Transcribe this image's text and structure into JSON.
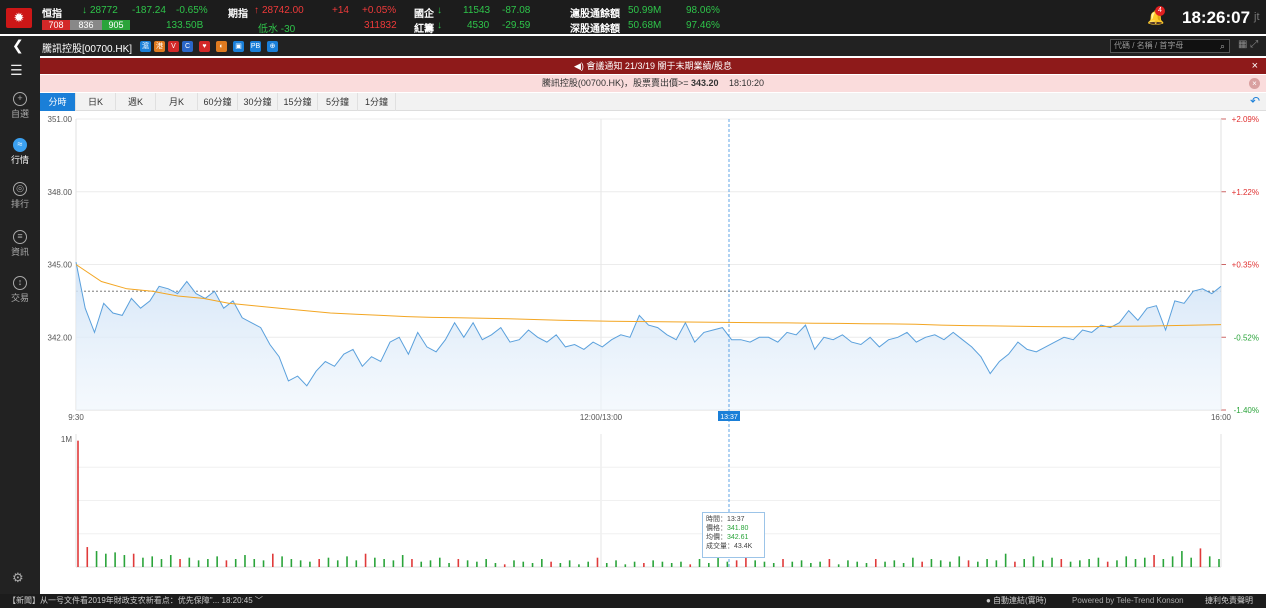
{
  "ticker": {
    "hsi": {
      "label": "恒指",
      "arrow": "down",
      "value": "28772",
      "change": "-187.24",
      "pct": "-0.65%",
      "adv": "708",
      "unch": "836",
      "dec": "905",
      "turnover": "133.50B"
    },
    "futures": {
      "label": "期指",
      "arrow": "up",
      "value": "28742.00",
      "change": "+14",
      "pct": "+0.05%",
      "premium": "低水 -30",
      "volume": "311832"
    },
    "hscei": {
      "label": "國企",
      "arrow": "down",
      "value": "11543",
      "change": "-87.08"
    },
    "redchip": {
      "label": "紅籌",
      "arrow": "down",
      "value": "4530",
      "change": "-29.59"
    },
    "sh_connect": {
      "label": "滬股通餘額",
      "value": "50.99M",
      "pct": "98.06%"
    },
    "sz_connect": {
      "label": "深股通餘額",
      "value": "50.68M",
      "pct": "97.46%"
    }
  },
  "notifications": {
    "count": "4"
  },
  "clock": {
    "time": "18:26:07",
    "suffix": "jt"
  },
  "stock": {
    "title": "騰訊控股[00700.HK]",
    "badges": [
      "滬",
      "港",
      "V",
      "C",
      "♥",
      "◐",
      "▣",
      "PB",
      "⊕"
    ]
  },
  "search": {
    "placeholder": "代碼 / 名稱 / 首字母"
  },
  "sidebar": {
    "items": [
      {
        "label": "自選",
        "icon": "+"
      },
      {
        "label": "行情",
        "icon": "≈"
      },
      {
        "label": "排行",
        "icon": "◎"
      },
      {
        "label": "資訊",
        "icon": "≡"
      },
      {
        "label": "交易",
        "icon": "↕"
      }
    ]
  },
  "announcement": {
    "text": "◀) 會議通知 21/3/19 關于末期業績/股息"
  },
  "alert": {
    "text": "騰訊控股(00700.HK)，股票賣出價>= ",
    "price": "343.20",
    "time": "18:10:20"
  },
  "tabs": [
    "分時",
    "日K",
    "週K",
    "月K",
    "60分鐘",
    "30分鐘",
    "15分鐘",
    "5分鐘",
    "1分鐘"
  ],
  "active_tab": 0,
  "tooltip": {
    "time_label": "時間：",
    "time": "13:37",
    "price_label": "價格：",
    "price": "341.80",
    "avg_label": "均價：",
    "avg": "342.61",
    "vol_label": "成交量：",
    "vol": "43.4K"
  },
  "crosshair_label": "13:37",
  "footer": {
    "news": "【新聞】从一号文件看2019年財政支农新看点：优先保障\"...  18:20:45 ﹀",
    "status": "● 自動連結(實時)",
    "powered": "Powered by Tele-Trend Konson",
    "disclaimer": "捷利免責聲明"
  },
  "chart_data": {
    "type": "line",
    "y_ticks": [
      "351.00",
      "348.00",
      "345.00",
      "342.00"
    ],
    "pct_ticks": [
      "+2.09%",
      "+1.22%",
      "+0.35%",
      "-0.52%",
      "-1.40%"
    ],
    "x_ticks": [
      "9:30",
      "12:00/13:00",
      "16:00"
    ],
    "ylim": [
      339.0,
      351.0
    ],
    "prev_close": 343.9,
    "volume_scale": "1M",
    "series": [
      {
        "values": [
          345.1,
          343.2,
          342.2,
          343.4,
          343.0,
          342.9,
          343.6,
          343.2,
          343.5,
          344.1,
          344.0,
          343.8,
          344.3,
          343.8,
          343.6,
          343.9,
          343.2,
          343.5,
          342.8,
          342.6,
          342.4,
          341.7,
          341.2,
          340.2,
          340.4,
          340.0,
          340.6,
          341.0,
          340.8,
          341.3,
          341.5,
          340.8,
          341.2,
          341.0,
          341.8,
          342.0,
          341.3,
          342.2,
          341.6,
          341.4,
          341.9,
          342.6,
          342.0,
          342.6,
          341.9,
          342.1,
          342.4,
          341.8,
          341.9,
          342.3,
          342.0,
          341.8,
          342.1,
          341.6,
          341.7,
          341.5,
          341.8,
          341.6,
          341.9,
          342.1,
          342.0,
          342.9,
          342.5,
          342.4,
          342.1,
          341.9,
          342.6,
          341.8,
          342.2,
          342.3,
          342.4,
          341.9,
          341.9,
          341.8,
          342.0,
          342.0,
          341.8,
          342.2,
          342.1,
          342.5,
          341.5,
          342.0,
          341.9,
          342.1,
          341.8,
          341.7,
          342.0,
          341.6,
          341.9,
          342.0,
          342.2,
          341.8,
          342.0,
          342.1,
          341.9,
          342.2,
          341.9,
          341.6,
          341.2,
          340.5,
          341.0,
          341.3,
          341.8,
          341.5,
          341.4,
          341.6,
          341.8,
          342.0,
          341.9,
          342.3,
          342.2,
          342.5,
          342.4,
          342.6,
          343.1,
          342.7,
          343.2,
          343.3,
          342.3,
          343.5,
          343.4,
          343.9,
          344.0,
          343.8,
          344.1
        ],
        "color": "#5aa0dc",
        "name": ""
      },
      {
        "values": [
          345.0,
          344.3,
          344.0,
          343.9,
          343.7,
          343.6,
          343.4,
          343.3,
          343.2,
          343.1,
          343.0,
          342.95,
          342.9,
          342.85,
          342.82,
          342.8,
          342.78,
          342.76,
          342.73,
          342.7,
          342.68,
          342.66,
          342.65,
          342.64,
          342.63,
          342.62,
          342.61,
          342.6,
          342.59,
          342.58,
          342.57,
          342.56,
          342.55,
          342.54,
          342.5,
          342.48,
          342.47,
          342.45,
          342.44,
          342.43,
          342.44,
          342.45,
          342.46,
          342.48,
          342.5,
          342.52
        ],
        "color": "#f3a623",
        "name": ""
      }
    ],
    "volume": [
      95,
      15,
      12,
      10,
      11,
      9,
      10,
      7,
      8,
      6,
      9,
      6,
      7,
      5,
      6,
      8,
      5,
      6,
      9,
      6,
      5,
      10,
      8,
      6,
      5,
      4,
      6,
      7,
      5,
      8,
      5,
      10,
      7,
      6,
      5,
      9,
      6,
      4,
      5,
      7,
      3,
      6,
      5,
      4,
      6,
      3,
      2,
      5,
      4,
      3,
      6,
      4,
      3,
      5,
      2,
      4,
      7,
      3,
      5,
      2,
      4,
      3,
      5,
      4,
      3,
      4,
      2,
      6,
      3,
      7,
      4,
      5,
      22,
      5,
      4,
      3,
      6,
      4,
      5,
      3,
      4,
      6,
      2,
      5,
      4,
      3,
      6,
      4,
      5,
      3,
      7,
      4,
      6,
      5,
      4,
      8,
      5,
      4,
      6,
      5,
      10,
      4,
      6,
      8,
      5,
      7,
      6,
      4,
      5,
      6,
      7,
      4,
      5,
      8,
      6,
      7,
      9,
      6,
      8,
      12,
      7,
      14,
      8,
      6
    ]
  }
}
